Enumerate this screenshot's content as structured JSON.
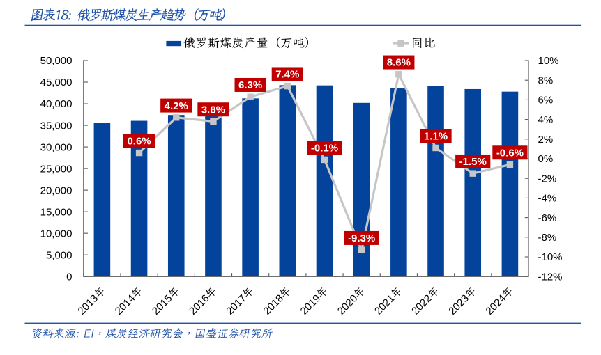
{
  "figure": {
    "title": "图表18: 俄罗斯煤炭生产趋势（万吨）",
    "source": "资料来源: EI，煤炭经济研究会，国盛证券研究所"
  },
  "legend": {
    "bar_series_label": "俄罗斯煤炭产量（万吨）",
    "line_series_label": "同比"
  },
  "chart_data": {
    "type": "bar",
    "title": "俄罗斯煤炭生产趋势（万吨）",
    "categories": [
      "2013年",
      "2014年",
      "2015年",
      "2016年",
      "2017年",
      "2018年",
      "2019年",
      "2020年",
      "2021年",
      "2022年",
      "2023年",
      "2024年"
    ],
    "series": [
      {
        "name": "俄罗斯煤炭产量（万吨）",
        "type": "bar",
        "axis": "left",
        "values": [
          35650,
          36050,
          37400,
          37100,
          41250,
          44300,
          44250,
          40200,
          43550,
          44100,
          43400,
          42800
        ]
      },
      {
        "name": "同比",
        "type": "line",
        "axis": "right",
        "values": [
          null,
          0.6,
          4.2,
          3.8,
          6.3,
          7.4,
          -0.1,
          -9.3,
          8.6,
          1.1,
          -1.5,
          -0.6
        ],
        "data_labels": [
          null,
          "0.6%",
          "4.2%",
          "3.8%",
          "6.3%",
          "7.4%",
          "-0.1%",
          "-9.3%",
          "8.6%",
          "1.1%",
          "-1.5%",
          "-0.6%"
        ]
      }
    ],
    "left_axis": {
      "min": 0,
      "max": 50000,
      "step": 5000,
      "tick_labels": [
        "50,000",
        "45,000",
        "40,000",
        "35,000",
        "30,000",
        "25,000",
        "20,000",
        "15,000",
        "10,000",
        "5,000",
        "0"
      ]
    },
    "right_axis": {
      "min": -12,
      "max": 10,
      "step": 2,
      "tick_labels": [
        "10%",
        "8%",
        "6%",
        "4%",
        "2%",
        "0%",
        "-2%",
        "-4%",
        "-6%",
        "-8%",
        "-10%",
        "-12%"
      ]
    },
    "grid": false,
    "legend_position": "top"
  },
  "colors": {
    "bar": "#03439C",
    "accent_blue": "#1F52A8",
    "line": "#C6C6C6",
    "marker": "#C6C6C6",
    "label_bg": "#C00000",
    "label_text": "#FFFFFF",
    "axis": "#595959",
    "tick_text": "#000000",
    "background": "#FFFFFF"
  }
}
